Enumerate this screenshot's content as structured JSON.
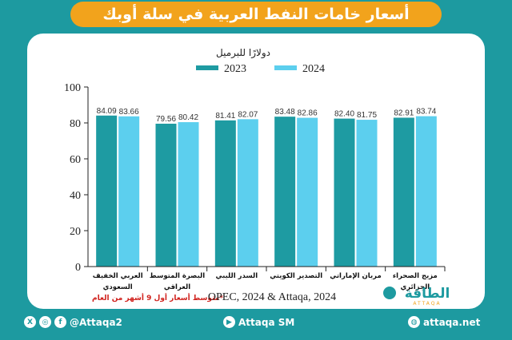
{
  "header": {
    "title": "أسعار خامات النفط العربية في سلة أوبك"
  },
  "chart_data": {
    "type": "bar",
    "ylabel": "دولارًا للبرميل",
    "ylim": [
      0,
      100
    ],
    "yticks": [
      0,
      20,
      40,
      60,
      80,
      100
    ],
    "grid": false,
    "legend_position": "top-center",
    "categories": [
      [
        "العربي الخفيف",
        "السعودي"
      ],
      [
        "البصرة المتوسط",
        "العراقي"
      ],
      [
        "السدر الليبي"
      ],
      [
        "التصدير الكويتي"
      ],
      [
        "مربان الإماراتي"
      ],
      [
        "مزيج الصحراء",
        "الجزائري"
      ]
    ],
    "series": [
      {
        "name": "2023",
        "color": "#1e9ba2",
        "values": [
          84.09,
          79.56,
          81.41,
          83.48,
          82.4,
          82.91
        ]
      },
      {
        "name": "2024",
        "color": "#5ccfee",
        "values": [
          83.66,
          80.42,
          82.07,
          82.86,
          81.75,
          83.74
        ]
      }
    ],
    "footnote": "*متوسط أسعار أول 9 أشهر من العام",
    "source": "OPEC, 2024 & Attaqa, 2024"
  },
  "brand": {
    "logo_text": "الطاقة",
    "logo_sub": "ATTAQA"
  },
  "footer": {
    "social_handle": "@Attaqa2",
    "youtube": "Attaqa SM",
    "website": "attaqa.net",
    "colors": {
      "accent": "#f2a31c",
      "teal": "#1d9aa0"
    }
  }
}
